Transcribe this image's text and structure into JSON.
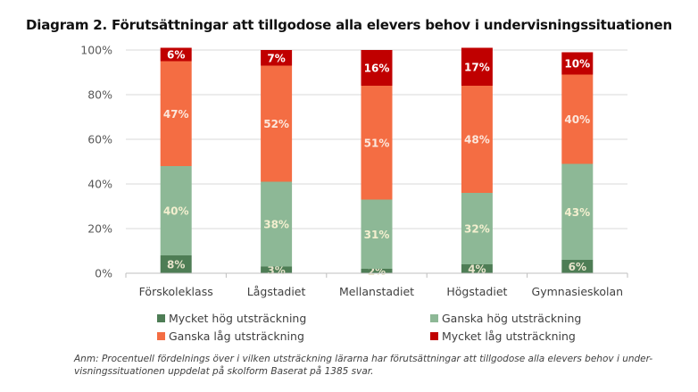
{
  "chart_data": {
    "type": "bar",
    "stacked": true,
    "title": "Diagram 2. Förutsättningar att tillgodose alla elevers behov i undervisningssituationen",
    "xlabel": "",
    "ylabel": "",
    "ylim": [
      0,
      100
    ],
    "yticks": [
      "0%",
      "20%",
      "40%",
      "60%",
      "80%",
      "100%"
    ],
    "grid": true,
    "legend_position": "bottom",
    "categories": [
      "Förskoleklass",
      "Lågstadiet",
      "Mellanstadiet",
      "Högstadiet",
      "Gymnasieskolan"
    ],
    "series": [
      {
        "name": "Mycket hög utsträckning",
        "color": "#4E7D55",
        "label_color": "#E8E4CC",
        "values": [
          8,
          3,
          2,
          4,
          6
        ]
      },
      {
        "name": "Ganska hög utsträckning",
        "color": "#8DB896",
        "label_color": "#F3EFCF",
        "values": [
          40,
          38,
          31,
          32,
          43
        ]
      },
      {
        "name": "Ganska låg utsträckning",
        "color": "#F46D43",
        "label_color": "#FCE7DC",
        "values": [
          47,
          52,
          51,
          48,
          40
        ]
      },
      {
        "name": "Mycket låg utsträckning",
        "color": "#C00000",
        "label_color": "#FFFFFF",
        "values": [
          6,
          7,
          16,
          17,
          10
        ]
      }
    ],
    "legend_order": [
      0,
      1,
      2,
      3
    ],
    "note": "Anm: Procentuell fördelnings över i vilken utsträckning lärarna har förutsättningar att tillgodose alla elevers behov i under-visningssituationen uppdelat på skolform Baserat på 1385 svar.",
    "note_lines": [
      "Anm: Procentuell fördelnings över i vilken utsträckning lärarna har förutsättningar att tillgodose alla elevers behov i under-",
      "visningssituationen uppdelat på skolform Baserat på 1385 svar."
    ]
  }
}
